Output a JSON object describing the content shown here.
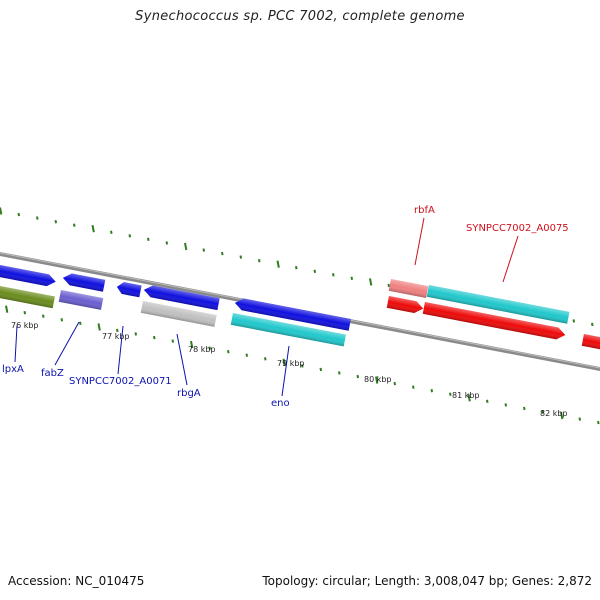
{
  "title": "Synechococcus sp. PCC 7002, complete genome",
  "footer": {
    "accession": "Accession: NC_010475",
    "summary": "Topology: circular; Length: 3,008,047 bp; Genes: 2,872"
  },
  "colors": {
    "backbone": "#8a8a8a",
    "tick": "#2e7d1e",
    "blue_label": "#0b13b0",
    "red_label": "#d0101c",
    "blue": "#1010e0",
    "olive": "#6b8c1e",
    "slate": "#6a5fd0",
    "gray": "#c0c0c0",
    "cyan": "#20c8cc",
    "pink": "#f08080",
    "red": "#ee0a0a"
  },
  "scale_labels": [
    "76 kbp",
    "77 kbp",
    "78 kbp",
    "79 kbp",
    "80 kbp",
    "81 kbp",
    "82 kbp"
  ],
  "gene_labels": [
    {
      "text": "lpxA",
      "color": "blue_label"
    },
    {
      "text": "fabZ",
      "color": "blue_label"
    },
    {
      "text": "SYNPCC7002_A0071",
      "color": "blue_label"
    },
    {
      "text": "rbgA",
      "color": "blue_label"
    },
    {
      "text": "eno",
      "color": "blue_label"
    },
    {
      "text": "rbfA",
      "color": "red_label"
    },
    {
      "text": "SYNPCC7002_A0075",
      "color": "red_label"
    }
  ]
}
